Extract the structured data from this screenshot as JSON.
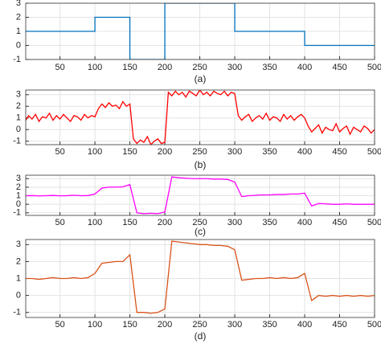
{
  "chart_data": [
    {
      "type": "line",
      "caption": "(a)",
      "color": "#0072bd",
      "grid": true,
      "x": [
        1,
        100,
        100,
        150,
        150,
        200,
        200,
        300,
        300,
        400,
        400,
        500
      ],
      "values": [
        1,
        1,
        2,
        2,
        -1,
        -1,
        3,
        3,
        1,
        1,
        0,
        0
      ],
      "xlim": [
        1,
        500
      ],
      "xticks": [
        50,
        100,
        150,
        200,
        250,
        300,
        350,
        400,
        450,
        500
      ],
      "ylim": [
        -1,
        3
      ],
      "yticks": [
        -1,
        0,
        1,
        2,
        3
      ]
    },
    {
      "type": "line",
      "caption": "(b)",
      "color": "#ff0000",
      "grid": true,
      "x": [
        1,
        5,
        10,
        15,
        20,
        25,
        30,
        35,
        40,
        45,
        50,
        55,
        60,
        65,
        70,
        75,
        80,
        85,
        90,
        95,
        100,
        105,
        110,
        115,
        120,
        125,
        130,
        135,
        140,
        145,
        150,
        155,
        160,
        165,
        170,
        175,
        180,
        185,
        190,
        195,
        200,
        205,
        210,
        215,
        220,
        225,
        230,
        235,
        240,
        245,
        250,
        255,
        260,
        265,
        270,
        275,
        280,
        285,
        290,
        295,
        300,
        305,
        310,
        315,
        320,
        325,
        330,
        335,
        340,
        345,
        350,
        355,
        360,
        365,
        370,
        375,
        380,
        385,
        390,
        395,
        400,
        405,
        410,
        415,
        420,
        425,
        430,
        435,
        440,
        445,
        450,
        455,
        460,
        465,
        470,
        475,
        480,
        485,
        490,
        495,
        500
      ],
      "values": [
        0.8,
        1.2,
        0.9,
        1.3,
        0.7,
        1.1,
        1.0,
        1.4,
        0.8,
        1.2,
        0.9,
        1.3,
        1.0,
        0.7,
        1.2,
        1.1,
        0.8,
        1.3,
        1.0,
        1.2,
        1.1,
        1.8,
        2.2,
        1.9,
        2.3,
        2.0,
        2.1,
        1.8,
        2.4,
        2.0,
        2.2,
        -0.8,
        -1.2,
        -0.9,
        -1.1,
        -0.6,
        -1.3,
        -1.0,
        -0.8,
        -1.2,
        -1.1,
        3.2,
        2.9,
        3.3,
        3.0,
        3.2,
        2.8,
        3.3,
        3.1,
        2.9,
        3.4,
        3.0,
        3.2,
        2.9,
        3.3,
        3.1,
        3.0,
        3.3,
        2.9,
        3.2,
        3.1,
        1.2,
        0.8,
        1.1,
        1.3,
        0.7,
        1.0,
        1.2,
        0.9,
        1.4,
        0.8,
        1.1,
        1.0,
        0.7,
        1.3,
        0.9,
        1.2,
        0.8,
        1.1,
        1.3,
        1.0,
        0.3,
        -0.2,
        0.1,
        0.4,
        -0.3,
        0.2,
        0.0,
        -0.1,
        0.5,
        -0.2,
        0.1,
        0.3,
        -0.4,
        0.2,
        0.0,
        -0.2,
        0.3,
        0.1,
        -0.3,
        0.0
      ],
      "xlim": [
        1,
        500
      ],
      "xticks": [
        50,
        100,
        150,
        200,
        250,
        300,
        350,
        400,
        450,
        500
      ],
      "ylim": [
        -1.3,
        3.4
      ],
      "yticks": [
        -1,
        0,
        1,
        2,
        3
      ]
    },
    {
      "type": "line",
      "caption": "(c)",
      "color": "#ff00ff",
      "grid": true,
      "x": [
        1,
        10,
        20,
        30,
        40,
        50,
        60,
        70,
        80,
        90,
        100,
        110,
        120,
        130,
        140,
        150,
        160,
        170,
        180,
        190,
        200,
        210,
        220,
        230,
        240,
        250,
        260,
        270,
        280,
        290,
        300,
        310,
        320,
        330,
        340,
        350,
        360,
        370,
        380,
        390,
        400,
        410,
        420,
        430,
        440,
        450,
        460,
        470,
        480,
        490,
        500
      ],
      "values": [
        1.0,
        1.02,
        0.98,
        1.0,
        1.03,
        0.99,
        1.01,
        1.05,
        1.0,
        1.02,
        1.2,
        1.9,
        2.0,
        2.0,
        2.05,
        2.3,
        -1.0,
        -1.1,
        -1.05,
        -1.1,
        -0.9,
        3.2,
        3.1,
        3.05,
        3.0,
        3.0,
        3.0,
        2.95,
        2.95,
        2.9,
        2.6,
        0.9,
        1.0,
        1.05,
        1.1,
        1.1,
        1.15,
        1.15,
        1.2,
        1.2,
        1.3,
        -0.2,
        0.1,
        0.05,
        0.0,
        0.0,
        0.05,
        0.0,
        0.0,
        0.0,
        0.0
      ],
      "xlim": [
        1,
        500
      ],
      "xticks": [
        50,
        100,
        150,
        200,
        250,
        300,
        350,
        400,
        450,
        500
      ],
      "ylim": [
        -1.3,
        3.4
      ],
      "yticks": [
        -1,
        0,
        1,
        2,
        3
      ]
    },
    {
      "type": "line",
      "caption": "(d)",
      "color": "#d95319",
      "grid": true,
      "x": [
        1,
        10,
        20,
        30,
        40,
        50,
        60,
        70,
        80,
        90,
        100,
        110,
        120,
        130,
        140,
        150,
        160,
        170,
        180,
        190,
        200,
        210,
        220,
        230,
        240,
        250,
        260,
        270,
        280,
        290,
        300,
        310,
        320,
        330,
        340,
        350,
        360,
        370,
        380,
        390,
        400,
        410,
        420,
        430,
        440,
        450,
        460,
        470,
        480,
        490,
        500
      ],
      "values": [
        1.0,
        1.0,
        0.95,
        1.0,
        1.05,
        1.0,
        1.0,
        1.05,
        1.0,
        1.05,
        1.3,
        1.9,
        1.95,
        2.0,
        2.0,
        2.4,
        -1.0,
        -1.0,
        -1.05,
        -1.0,
        -0.8,
        3.2,
        3.15,
        3.1,
        3.05,
        3.0,
        3.0,
        2.95,
        2.95,
        2.9,
        2.7,
        0.9,
        0.95,
        1.0,
        1.0,
        1.05,
        1.0,
        1.05,
        1.0,
        1.05,
        1.3,
        -0.3,
        0.0,
        -0.05,
        0.0,
        -0.05,
        0.0,
        -0.05,
        0.0,
        -0.05,
        0.0
      ],
      "xlim": [
        1,
        500
      ],
      "xticks": [
        50,
        100,
        150,
        200,
        250,
        300,
        350,
        400,
        450,
        500
      ],
      "ylim": [
        -1.3,
        3.3
      ],
      "yticks": [
        -1,
        0,
        1,
        2,
        3
      ]
    }
  ]
}
